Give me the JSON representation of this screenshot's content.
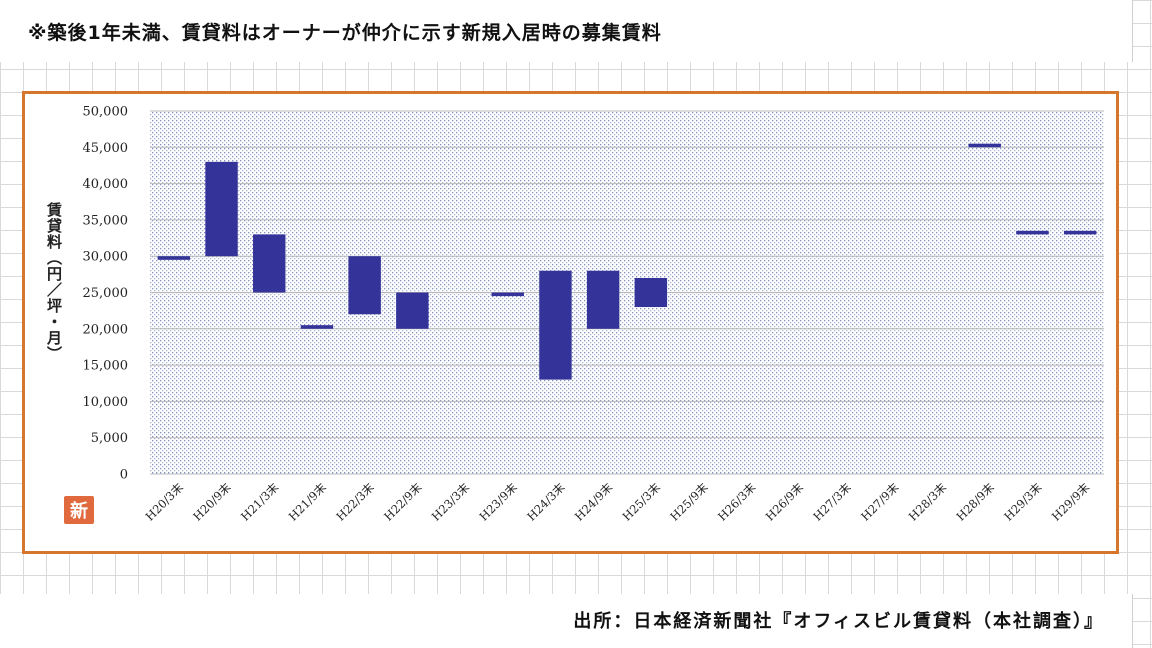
{
  "note": "※築後1年未満、賃貸料はオーナーが仲介に示す新規入居時の募集賃料",
  "source": "出所：日本経済新聞社『オフィスビル賃貸料（本社調査）』",
  "badge_text": "新",
  "colors": {
    "bar": "#333399",
    "frame": "#d5762c",
    "plot_dots": "#7f8fc0"
  },
  "chart_data": {
    "type": "bar",
    "subtype": "floating-range",
    "ylabel": "賃貸料（円／坪・月）",
    "ylim": [
      0,
      50000
    ],
    "yticks": [
      "0",
      "5,000",
      "10,000",
      "15,000",
      "20,000",
      "25,000",
      "30,000",
      "35,000",
      "40,000",
      "45,000",
      "50,000"
    ],
    "grid": true,
    "categories": [
      "H20/3末",
      "H20/9末",
      "H21/3末",
      "H21/9末",
      "H22/3末",
      "H22/9末",
      "H23/3末",
      "H23/9末",
      "H24/3末",
      "H24/9末",
      "H25/3末",
      "H25/9末",
      "H26/3末",
      "H26/9末",
      "H27/3末",
      "H27/9末",
      "H28/3末",
      "H28/9末",
      "H29/3末",
      "H29/9末"
    ],
    "ranges": [
      [
        29500,
        30000
      ],
      [
        30000,
        43000
      ],
      [
        25000,
        33000
      ],
      [
        20000,
        20500
      ],
      [
        22000,
        30000
      ],
      [
        20000,
        25000
      ],
      null,
      [
        24500,
        25000
      ],
      [
        13000,
        28000
      ],
      [
        20000,
        28000
      ],
      [
        23000,
        27000
      ],
      null,
      null,
      null,
      null,
      null,
      null,
      [
        45000,
        45500
      ],
      [
        33000,
        33500
      ],
      [
        33000,
        33500
      ]
    ]
  }
}
